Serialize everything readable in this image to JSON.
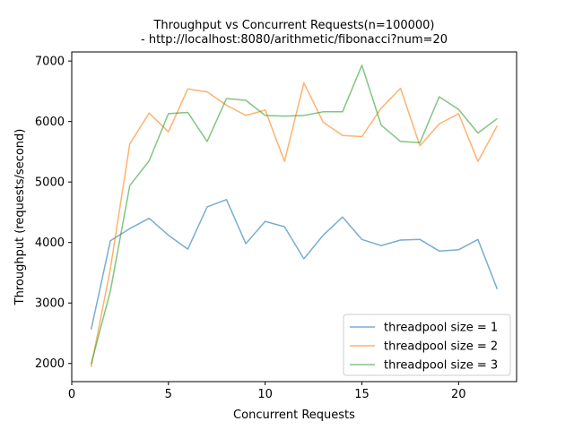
{
  "chart_data": {
    "type": "line",
    "title_line1": "Throughput vs Concurrent Requests(n=100000)",
    "title_line2": "- http://localhost:8080/arithmetic/fibonacci?num=20",
    "xlabel": "Concurrent Requests",
    "ylabel": "Throughput (requests/second)",
    "xlim": [
      0,
      23
    ],
    "ylim": [
      1700,
      7150
    ],
    "x_ticks": [
      0,
      5,
      10,
      15,
      20
    ],
    "y_ticks": [
      2000,
      3000,
      4000,
      5000,
      6000,
      7000
    ],
    "grid": false,
    "legend_position": "lower-right",
    "x": [
      1,
      2,
      3,
      4,
      5,
      6,
      7,
      8,
      9,
      10,
      11,
      12,
      13,
      14,
      15,
      16,
      17,
      18,
      19,
      20,
      21,
      22
    ],
    "series": [
      {
        "name": "threadpool size = 1",
        "color": "#1f77b4",
        "values": [
          2560,
          4030,
          4230,
          4400,
          4120,
          3890,
          4590,
          4710,
          3980,
          4350,
          4260,
          3730,
          4120,
          4420,
          4050,
          3950,
          4040,
          4050,
          3860,
          3880,
          4050,
          3230
        ]
      },
      {
        "name": "threadpool size = 2",
        "color": "#ff7f0e",
        "values": [
          1940,
          3570,
          5630,
          6140,
          5830,
          6540,
          6490,
          6270,
          6100,
          6190,
          5340,
          6640,
          5990,
          5770,
          5750,
          6220,
          6550,
          5600,
          5960,
          6130,
          5340,
          5930
        ]
      },
      {
        "name": "threadpool size = 3",
        "color": "#2ca02c",
        "values": [
          1990,
          3200,
          4940,
          5350,
          6130,
          6150,
          5670,
          6380,
          6350,
          6100,
          6090,
          6100,
          6160,
          6160,
          6930,
          5940,
          5670,
          5650,
          6410,
          6200,
          5810,
          6050
        ]
      }
    ]
  }
}
